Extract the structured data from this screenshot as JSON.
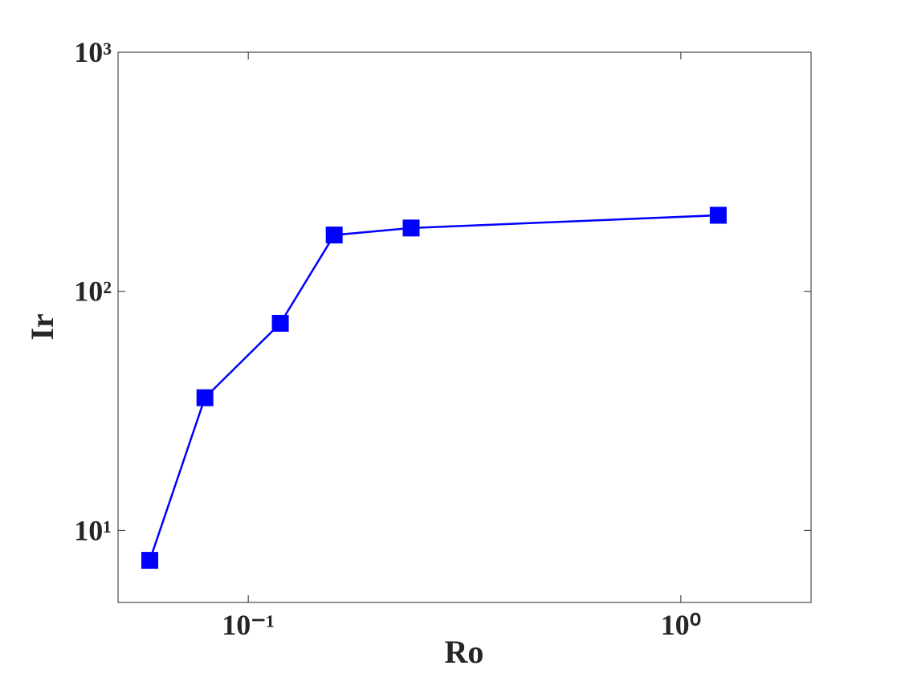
{
  "chart_data": {
    "type": "line",
    "xlabel": "Ro",
    "ylabel": "Ir",
    "x": [
      0.0592,
      0.0794,
      0.1186,
      0.158,
      0.238,
      1.22
    ],
    "values": [
      7.5,
      35.9,
      73.5,
      172,
      184,
      208
    ],
    "color": "#0000ff",
    "marker": "square",
    "xscale": "log",
    "yscale": "log",
    "xlim": [
      0.05,
      2
    ],
    "ylim": [
      5,
      1000
    ],
    "xticks": [
      {
        "value": 0.1,
        "label": "10⁻¹"
      },
      {
        "value": 1,
        "label": "10⁰"
      }
    ],
    "yticks": [
      {
        "value": 10,
        "label": "10¹"
      },
      {
        "value": 100,
        "label": "10²"
      },
      {
        "value": 1000,
        "label": "10³"
      }
    ],
    "grid": false
  }
}
